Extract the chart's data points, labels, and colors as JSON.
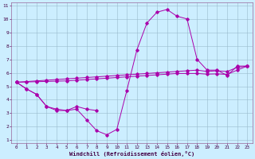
{
  "xlabel": "Windchill (Refroidissement éolien,°C)",
  "background_color": "#cceeff",
  "grid_color": "#99bbcc",
  "line_color": "#aa00aa",
  "x": [
    0,
    1,
    2,
    3,
    4,
    5,
    6,
    7,
    8,
    9,
    10,
    11,
    12,
    13,
    14,
    15,
    16,
    17,
    18,
    19,
    20,
    21,
    22,
    23
  ],
  "line1": [
    5.3,
    4.8,
    4.4,
    3.5,
    3.2,
    3.2,
    3.3,
    2.5,
    1.7,
    1.4,
    1.8,
    4.7,
    7.7,
    9.7,
    10.5,
    10.7,
    10.2,
    10.0,
    7.0,
    6.2,
    6.2,
    5.8,
    6.5,
    6.5
  ],
  "line2_x": [
    0,
    1,
    2,
    3,
    4,
    5,
    6,
    7,
    8
  ],
  "line2_y": [
    5.3,
    4.8,
    4.4,
    3.5,
    3.3,
    3.2,
    3.5,
    3.3,
    3.2
  ],
  "line3": [
    5.3,
    5.35,
    5.4,
    5.45,
    5.5,
    5.55,
    5.6,
    5.65,
    5.7,
    5.75,
    5.8,
    5.85,
    5.9,
    5.95,
    6.0,
    6.05,
    6.1,
    6.15,
    6.2,
    6.1,
    6.15,
    6.1,
    6.4,
    6.5
  ],
  "line4": [
    5.3,
    5.32,
    5.34,
    5.36,
    5.38,
    5.4,
    5.45,
    5.5,
    5.55,
    5.6,
    5.65,
    5.7,
    5.75,
    5.8,
    5.85,
    5.9,
    5.95,
    5.95,
    5.95,
    5.9,
    5.92,
    5.88,
    6.2,
    6.5
  ],
  "ylim": [
    1,
    11
  ],
  "xlim": [
    -0.5,
    23.5
  ],
  "yticks": [
    1,
    2,
    3,
    4,
    5,
    6,
    7,
    8,
    9,
    10,
    11
  ],
  "xticks": [
    0,
    1,
    2,
    3,
    4,
    5,
    6,
    7,
    8,
    9,
    10,
    11,
    12,
    13,
    14,
    15,
    16,
    17,
    18,
    19,
    20,
    21,
    22,
    23
  ]
}
